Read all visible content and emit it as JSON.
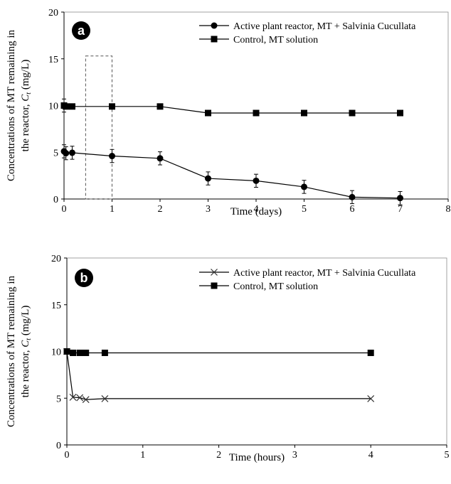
{
  "chart_data": [
    {
      "type": "line",
      "badge": "a",
      "xlabel": "Time (days)",
      "ylabel_line1": "Concentrations of MT remaining in",
      "ylabel_line2_prefix": "the reactor, ",
      "ylabel_var": "C",
      "ylabel_sub": "t",
      "ylabel_unit": " (mg/L)",
      "xlim": [
        0,
        8
      ],
      "ylim": [
        0,
        20
      ],
      "xticks": [
        0,
        1,
        2,
        3,
        4,
        5,
        6,
        7,
        8
      ],
      "yticks": [
        0,
        5,
        10,
        15,
        20
      ],
      "highlight_box": {
        "x": [
          0.45,
          1.0
        ],
        "y": [
          0,
          15.3
        ]
      },
      "series": [
        {
          "name": "Active plant reactor, MT + Salvinia Cucullata",
          "marker": "circle",
          "x": [
            0,
            0.04,
            0.17,
            1,
            2,
            3,
            4,
            5,
            6,
            7
          ],
          "y": [
            5.1,
            4.9,
            4.95,
            4.6,
            4.35,
            2.2,
            1.95,
            1.3,
            0.2,
            0.1
          ],
          "err": [
            0.7,
            0.7,
            0.7,
            0.7,
            0.7,
            0.7,
            0.7,
            0.7,
            0.7,
            0.7
          ]
        },
        {
          "name": "Control, MT  solution",
          "marker": "square",
          "x": [
            0,
            0.04,
            0.17,
            1,
            2,
            3,
            4,
            5,
            6,
            7
          ],
          "y": [
            10.0,
            9.9,
            9.9,
            9.9,
            9.9,
            9.2,
            9.2,
            9.2,
            9.2,
            9.2
          ],
          "err": [
            0.7,
            0,
            0,
            0,
            0,
            0,
            0,
            0,
            0,
            0
          ]
        }
      ]
    },
    {
      "type": "line",
      "badge": "b",
      "xlabel": "Time (hours)",
      "ylabel_line1": "Concentrations of MT remaining in",
      "ylabel_line2_prefix": "the reactor, ",
      "ylabel_var": "C",
      "ylabel_sub": "t",
      "ylabel_unit": " (mg/L)",
      "xlim": [
        0,
        5
      ],
      "ylim": [
        0,
        20
      ],
      "xticks": [
        0,
        1,
        2,
        3,
        4,
        5
      ],
      "yticks": [
        0,
        5,
        10,
        15,
        20
      ],
      "series": [
        {
          "name": "Active plant reactor, MT + Salvinia Cucullata",
          "marker": "x",
          "x": [
            0,
            0.08,
            0.17,
            0.25,
            0.5,
            4
          ],
          "y": [
            10.0,
            5.1,
            5.05,
            4.85,
            4.95,
            4.95
          ]
        },
        {
          "name": "Control, MT  solution",
          "marker": "square",
          "x": [
            0,
            0.08,
            0.17,
            0.25,
            0.5,
            4
          ],
          "y": [
            10.0,
            9.85,
            9.85,
            9.85,
            9.85,
            9.85
          ]
        }
      ]
    }
  ]
}
